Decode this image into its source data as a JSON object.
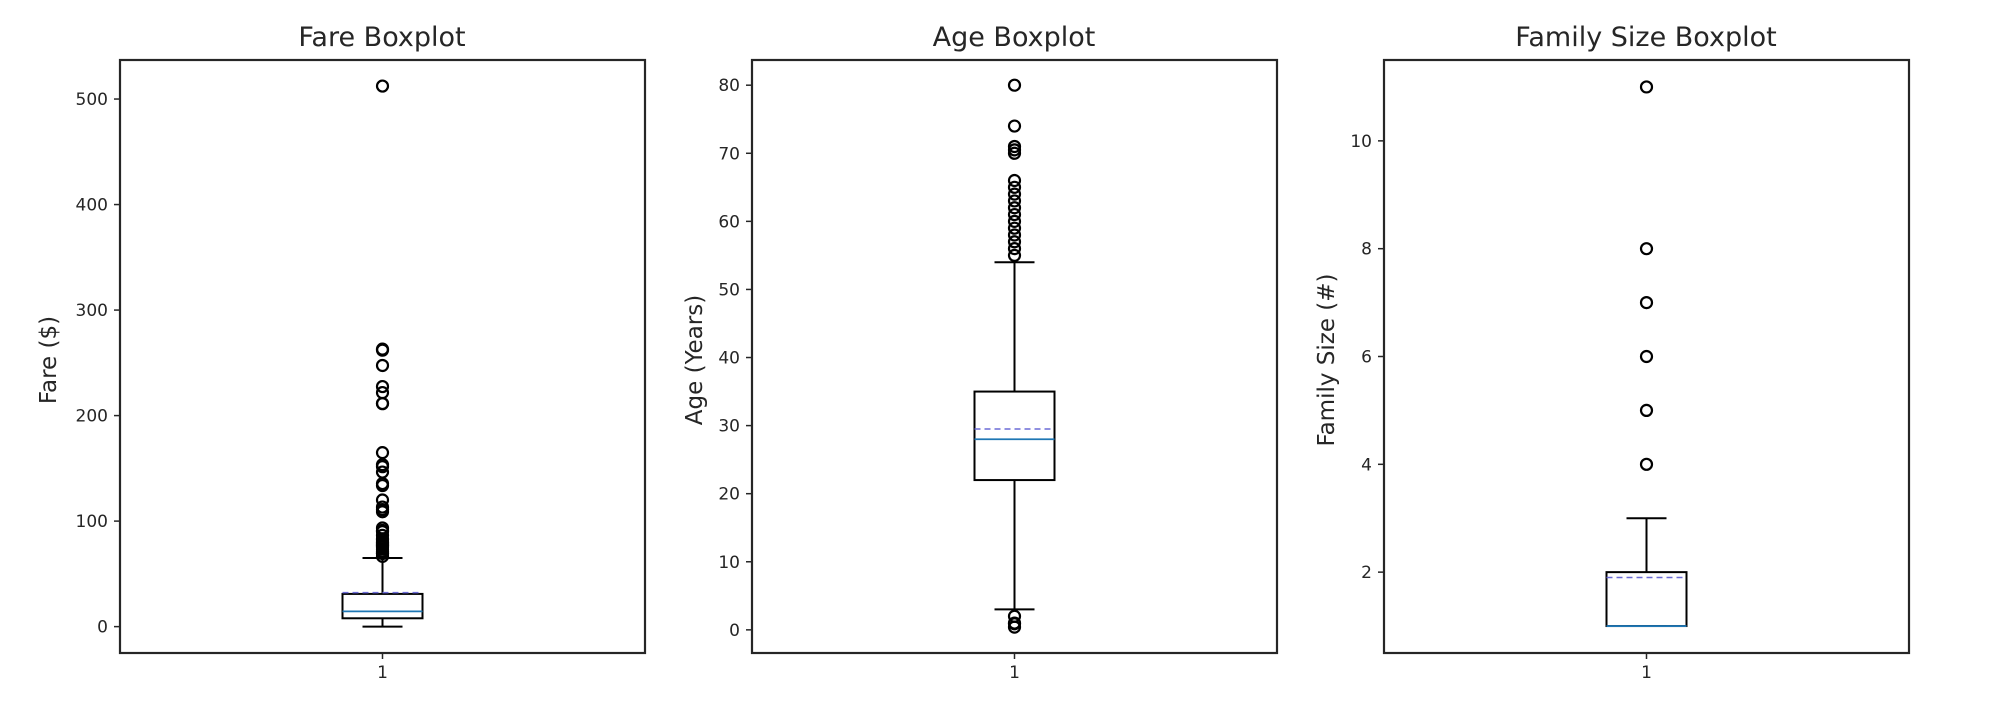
{
  "colors": {
    "background": "#ffffff",
    "axes": "#262626",
    "box": "#000000",
    "median": "#1f77b4",
    "mean": "#6b6bd6"
  },
  "chart_data": [
    {
      "type": "box",
      "title": "Fare Boxplot",
      "ylabel": "Fare ($)",
      "xlabel": "",
      "ylim": [
        -25,
        537
      ],
      "yticks": [
        0,
        100,
        200,
        300,
        400,
        500
      ],
      "xtick_labels": [
        "1"
      ],
      "grid": false,
      "box": {
        "whisker_low": 0,
        "q1": 7.9,
        "median": 14.45,
        "mean": 32.2,
        "q3": 31.0,
        "whisker_high": 65.0
      },
      "fliers": [
        512.3,
        263,
        262,
        247.5,
        227.5,
        221.8,
        211.5,
        211.3,
        164.9,
        153.5,
        151.6,
        146.5,
        135.6,
        133.7,
        120,
        113.3,
        110.9,
        108.9,
        93.5,
        91.1,
        90,
        86.5,
        83.2,
        82.2,
        80,
        79.2,
        78.3,
        77.3,
        76.7,
        75.3,
        73.5,
        71.3,
        69.6,
        69.3,
        66.6
      ]
    },
    {
      "type": "box",
      "title": "Age Boxplot",
      "ylabel": "Age (Years)",
      "xlabel": "",
      "ylim": [
        -3.4,
        83.7
      ],
      "yticks": [
        0,
        10,
        20,
        30,
        40,
        50,
        60,
        70,
        80
      ],
      "xtick_labels": [
        "1"
      ],
      "grid": false,
      "box": {
        "whisker_low": 3,
        "q1": 22,
        "median": 28,
        "mean": 29.5,
        "q3": 35,
        "whisker_high": 54
      },
      "fliers": [
        80,
        74,
        71,
        70.5,
        70,
        66,
        65,
        64,
        63,
        62,
        61,
        60,
        59,
        58,
        57,
        56,
        55,
        2,
        1,
        0.9,
        0.4
      ]
    },
    {
      "type": "box",
      "title": "Family Size Boxplot",
      "ylabel": "Family Size (#)",
      "xlabel": "",
      "ylim": [
        0.5,
        11.5
      ],
      "yticks": [
        2,
        4,
        6,
        8,
        10
      ],
      "xtick_labels": [
        "1"
      ],
      "grid": false,
      "box": {
        "whisker_low": 1,
        "q1": 1,
        "median": 1,
        "mean": 1.9,
        "q3": 2,
        "whisker_high": 3
      },
      "fliers": [
        11,
        8,
        7,
        6,
        5,
        4
      ]
    }
  ]
}
